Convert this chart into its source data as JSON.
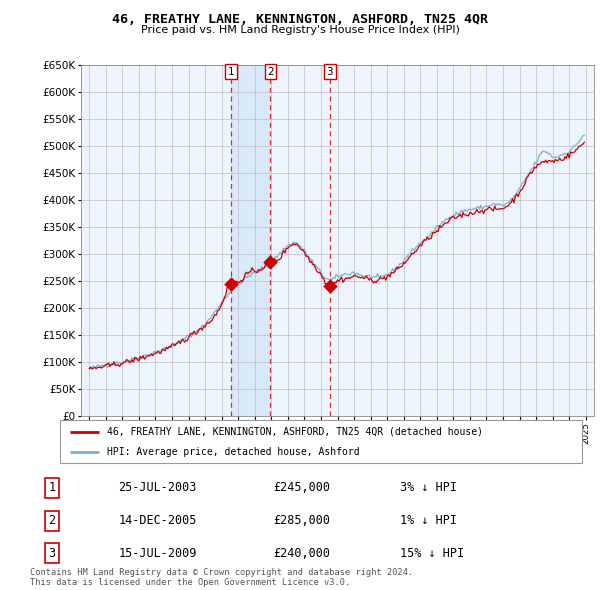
{
  "title": "46, FREATHY LANE, KENNINGTON, ASHFORD, TN25 4QR",
  "subtitle": "Price paid vs. HM Land Registry's House Price Index (HPI)",
  "ytick_values": [
    0,
    50000,
    100000,
    150000,
    200000,
    250000,
    300000,
    350000,
    400000,
    450000,
    500000,
    550000,
    600000,
    650000
  ],
  "hpi_color": "#7bafd4",
  "price_color": "#cc0000",
  "transaction_color": "#cc0000",
  "shade_color": "#ddeeff",
  "transactions": [
    {
      "label": "1",
      "date_num": 2003.56,
      "price": 245000
    },
    {
      "label": "2",
      "date_num": 2005.95,
      "price": 285000
    },
    {
      "label": "3",
      "date_num": 2009.54,
      "price": 240000
    }
  ],
  "transaction_table": [
    {
      "num": "1",
      "date": "25-JUL-2003",
      "price": "£245,000",
      "hpi_diff": "3% ↓ HPI"
    },
    {
      "num": "2",
      "date": "14-DEC-2005",
      "price": "£285,000",
      "hpi_diff": "1% ↓ HPI"
    },
    {
      "num": "3",
      "date": "15-JUL-2009",
      "price": "£240,000",
      "hpi_diff": "15% ↓ HPI"
    }
  ],
  "footer": "Contains HM Land Registry data © Crown copyright and database right 2024.\nThis data is licensed under the Open Government Licence v3.0.",
  "legend_label_red": "46, FREATHY LANE, KENNINGTON, ASHFORD, TN25 4QR (detached house)",
  "legend_label_blue": "HPI: Average price, detached house, Ashford",
  "xmin": 1994.5,
  "xmax": 2025.5,
  "ymin": 0,
  "ymax": 650000
}
